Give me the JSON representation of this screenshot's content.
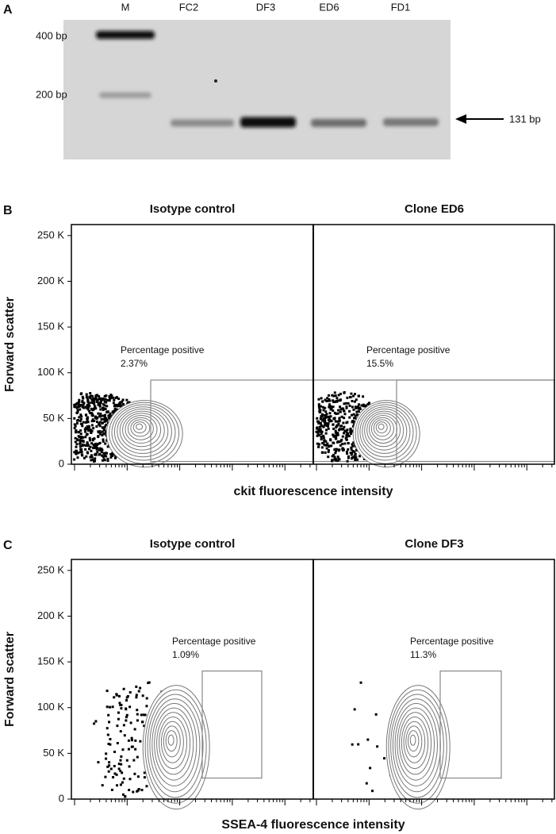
{
  "panel_a": {
    "label": "A",
    "lanes": [
      "M",
      "FC2",
      "DF3",
      "ED6",
      "FD1"
    ],
    "markers": [
      "400 bp",
      "200 bp"
    ],
    "arrow_label": "131 bp"
  },
  "panel_b": {
    "label": "B",
    "y_label": "Forward scatter",
    "x_label": "ckit fluorescence intensity",
    "ylim": [
      0,
      262000
    ],
    "yticks": [
      {
        "value": 0,
        "label": "0"
      },
      {
        "value": 50000,
        "label": "50 K"
      },
      {
        "value": 100000,
        "label": "100 K"
      },
      {
        "value": 150000,
        "label": "150 K"
      },
      {
        "value": 200000,
        "label": "200 K"
      },
      {
        "value": 250000,
        "label": "250 K"
      }
    ],
    "gate_y": [
      3000,
      92000
    ],
    "plots": [
      {
        "title": "Isotype control",
        "gate_label": "Percentage positive",
        "percent": "2.37%"
      },
      {
        "title": "Clone ED6",
        "gate_label": "Percentage positive",
        "percent": "15.5%"
      }
    ]
  },
  "panel_c": {
    "label": "C",
    "y_label": "Forward scatter",
    "x_label": "SSEA-4 fluorescence intensity",
    "ylim": [
      0,
      262000
    ],
    "yticks": [
      {
        "value": 0,
        "label": "0"
      },
      {
        "value": 50000,
        "label": "50 K"
      },
      {
        "value": 100000,
        "label": "100 K"
      },
      {
        "value": 150000,
        "label": "150 K"
      },
      {
        "value": 200000,
        "label": "200 K"
      },
      {
        "value": 250000,
        "label": "250 K"
      }
    ],
    "gate_y": [
      23000,
      140000
    ],
    "plots": [
      {
        "title": "Isotype control",
        "gate_label": "Percentage positive",
        "percent": "1.09%"
      },
      {
        "title": "Clone DF3",
        "gate_label": "Percentage positive",
        "percent": "11.3%"
      }
    ]
  }
}
